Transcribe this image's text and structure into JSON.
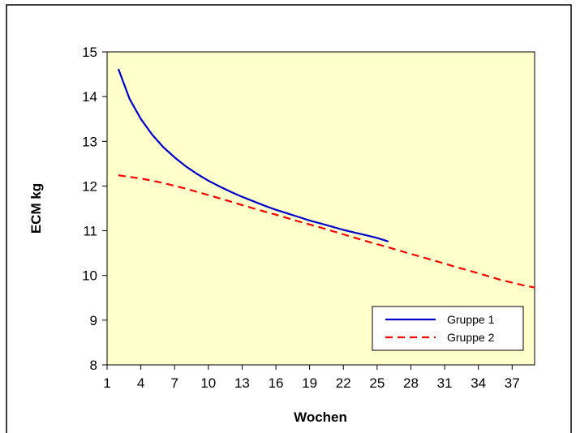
{
  "chart_data": {
    "type": "line",
    "title": "",
    "xlabel": "Wochen",
    "ylabel": "ECM kg",
    "xlim": [
      1,
      39
    ],
    "ylim": [
      8,
      15
    ],
    "xticks": [
      1,
      4,
      7,
      10,
      13,
      16,
      19,
      22,
      25,
      28,
      31,
      34,
      37
    ],
    "yticks": [
      8,
      9,
      10,
      11,
      12,
      13,
      14,
      15
    ],
    "grid": false,
    "legend_position": "bottom-right",
    "colors": {
      "plot_background": "#FFFFCC",
      "frame": "#000000"
    },
    "series": [
      {
        "name": "Gruppe 1",
        "color": "#0000CC",
        "dash": "solid",
        "x": [
          2,
          3,
          4,
          5,
          6,
          7,
          8,
          9,
          10,
          11,
          12,
          13,
          14,
          15,
          16,
          17,
          18,
          19,
          20,
          21,
          22,
          23,
          24,
          25,
          26
        ],
        "y": [
          14.62,
          13.95,
          13.5,
          13.15,
          12.87,
          12.64,
          12.44,
          12.27,
          12.12,
          11.99,
          11.87,
          11.76,
          11.66,
          11.56,
          11.47,
          11.39,
          11.31,
          11.23,
          11.16,
          11.09,
          11.02,
          10.96,
          10.9,
          10.84,
          10.76
        ]
      },
      {
        "name": "Gruppe 2",
        "color": "#FF0000",
        "dash": "dashed",
        "x": [
          2,
          4,
          6,
          8,
          10,
          12,
          14,
          16,
          18,
          20,
          22,
          24,
          26,
          28,
          30,
          32,
          34,
          36,
          38,
          39
        ],
        "y": [
          12.24,
          12.17,
          12.07,
          11.94,
          11.8,
          11.65,
          11.5,
          11.36,
          11.21,
          11.07,
          10.92,
          10.77,
          10.63,
          10.48,
          10.34,
          10.19,
          10.05,
          9.9,
          9.78,
          9.73
        ]
      }
    ]
  }
}
